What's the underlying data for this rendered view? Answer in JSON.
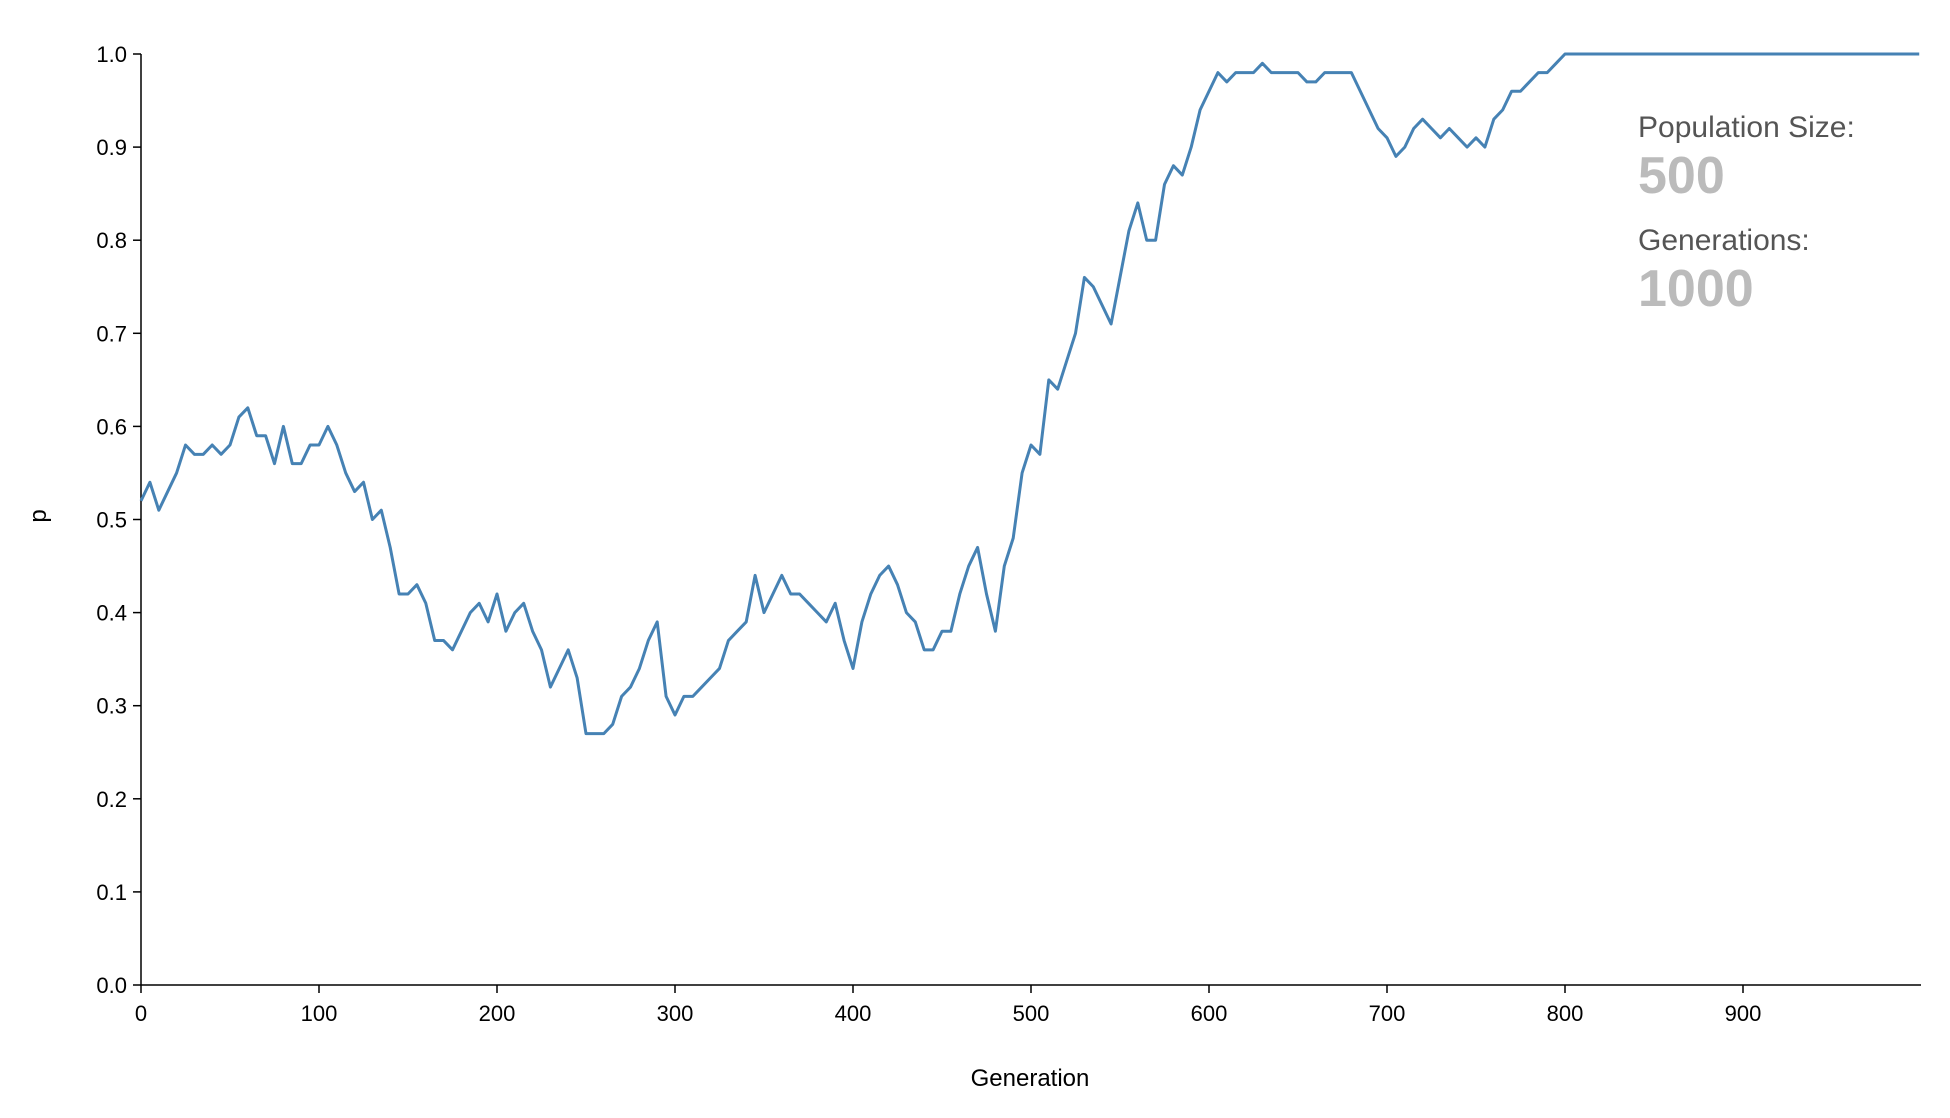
{
  "chart_data": {
    "type": "line",
    "x_label": "Generation",
    "y_label": "p",
    "x": [
      0,
      5,
      10,
      15,
      20,
      25,
      30,
      35,
      40,
      45,
      50,
      55,
      60,
      65,
      70,
      75,
      80,
      85,
      90,
      95,
      100,
      105,
      110,
      115,
      120,
      125,
      130,
      135,
      140,
      145,
      150,
      155,
      160,
      165,
      170,
      175,
      180,
      185,
      190,
      195,
      200,
      205,
      210,
      215,
      220,
      225,
      230,
      235,
      240,
      245,
      250,
      255,
      260,
      265,
      270,
      275,
      280,
      285,
      290,
      295,
      300,
      305,
      310,
      315,
      320,
      325,
      330,
      335,
      340,
      345,
      350,
      355,
      360,
      365,
      370,
      375,
      380,
      385,
      390,
      395,
      400,
      405,
      410,
      415,
      420,
      425,
      430,
      435,
      440,
      445,
      450,
      455,
      460,
      465,
      470,
      475,
      480,
      485,
      490,
      495,
      500,
      505,
      510,
      515,
      520,
      525,
      530,
      535,
      540,
      545,
      550,
      555,
      560,
      565,
      570,
      575,
      580,
      585,
      590,
      595,
      600,
      605,
      610,
      615,
      620,
      625,
      630,
      635,
      640,
      645,
      650,
      655,
      660,
      665,
      670,
      675,
      680,
      685,
      690,
      695,
      700,
      705,
      710,
      715,
      720,
      725,
      730,
      735,
      740,
      745,
      750,
      755,
      760,
      765,
      770,
      775,
      780,
      785,
      790,
      795,
      800,
      999
    ],
    "values": [
      0.52,
      0.54,
      0.51,
      0.53,
      0.55,
      0.58,
      0.57,
      0.57,
      0.58,
      0.57,
      0.58,
      0.61,
      0.62,
      0.59,
      0.59,
      0.56,
      0.6,
      0.56,
      0.56,
      0.58,
      0.58,
      0.6,
      0.58,
      0.55,
      0.53,
      0.54,
      0.5,
      0.51,
      0.47,
      0.42,
      0.42,
      0.43,
      0.41,
      0.37,
      0.37,
      0.36,
      0.38,
      0.4,
      0.41,
      0.39,
      0.42,
      0.38,
      0.4,
      0.41,
      0.38,
      0.36,
      0.32,
      0.34,
      0.36,
      0.33,
      0.27,
      0.27,
      0.27,
      0.28,
      0.31,
      0.32,
      0.34,
      0.37,
      0.39,
      0.31,
      0.29,
      0.31,
      0.31,
      0.32,
      0.33,
      0.34,
      0.37,
      0.38,
      0.39,
      0.44,
      0.4,
      0.42,
      0.44,
      0.42,
      0.42,
      0.41,
      0.4,
      0.39,
      0.41,
      0.37,
      0.34,
      0.39,
      0.42,
      0.44,
      0.45,
      0.43,
      0.4,
      0.39,
      0.36,
      0.36,
      0.38,
      0.38,
      0.42,
      0.45,
      0.47,
      0.42,
      0.38,
      0.45,
      0.48,
      0.55,
      0.58,
      0.57,
      0.65,
      0.64,
      0.67,
      0.7,
      0.76,
      0.75,
      0.73,
      0.71,
      0.76,
      0.81,
      0.84,
      0.8,
      0.8,
      0.86,
      0.88,
      0.87,
      0.9,
      0.94,
      0.96,
      0.98,
      0.97,
      0.98,
      0.98,
      0.98,
      0.99,
      0.98,
      0.98,
      0.98,
      0.98,
      0.97,
      0.97,
      0.98,
      0.98,
      0.98,
      0.98,
      0.96,
      0.94,
      0.92,
      0.91,
      0.89,
      0.9,
      0.92,
      0.93,
      0.92,
      0.91,
      0.92,
      0.91,
      0.9,
      0.91,
      0.9,
      0.93,
      0.94,
      0.96,
      0.96,
      0.97,
      0.98,
      0.98,
      0.99,
      1.0,
      1.0
    ],
    "color": "#4682b4",
    "xlim": [
      0,
      1000
    ],
    "xticks": [
      0,
      100,
      200,
      300,
      400,
      500,
      600,
      700,
      800,
      900
    ],
    "ylim": [
      0,
      1
    ],
    "yticks": [
      {
        "value": 0,
        "label": "0.0"
      },
      0.1,
      0.2,
      0.3,
      0.4,
      0.5,
      0.6,
      0.7,
      0.8,
      0.9,
      {
        "value": 1,
        "label": "1.0"
      }
    ],
    "annotations": [
      {
        "label": "Population Size:",
        "value": 500
      },
      {
        "label": "Generations:",
        "value": 1000
      }
    ]
  }
}
